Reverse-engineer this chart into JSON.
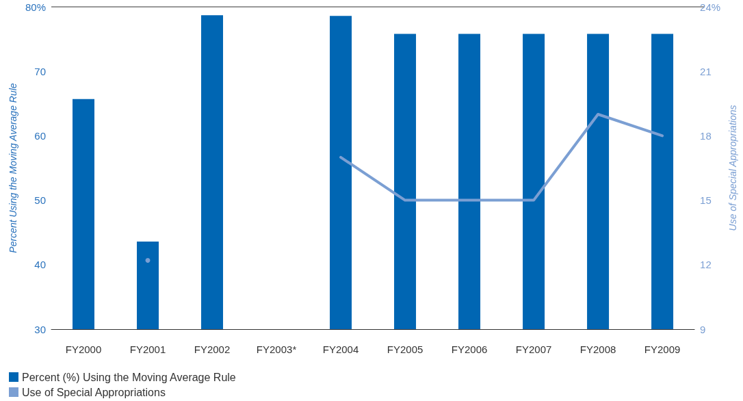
{
  "chart_data": {
    "type": "bar",
    "categories": [
      "FY2000",
      "FY2001",
      "FY2002",
      "FY2003*",
      "FY2004",
      "FY2005",
      "FY2006",
      "FY2007",
      "FY2008",
      "FY2009"
    ],
    "ylabel": "Percent Using the Moving Average Rule",
    "y2label": "Use of Special Appropriations",
    "ylim": [
      30,
      80
    ],
    "yticks": [
      30,
      40,
      50,
      60,
      70,
      {
        "value": 80,
        "label": "80%"
      }
    ],
    "y2lim": [
      9,
      24
    ],
    "y2ticks": [
      9,
      12,
      15,
      18,
      21,
      {
        "value": 24,
        "label": "24%"
      }
    ],
    "grid": false,
    "legend": "bottom left",
    "marker": "none",
    "series": [
      {
        "name": "Percent (%) Using the Moving Average Rule",
        "color": "#0066b3",
        "values": [
          65.7,
          43.6,
          78.7,
          null,
          78.6,
          75.8,
          75.8,
          75.8,
          75.8,
          75.8
        ]
      },
      {
        "name": "Use of Special Appropriations",
        "type": "line",
        "axis": "y2",
        "color": "#7b9fd3",
        "values": [
          null,
          12.2,
          null,
          null,
          17,
          15,
          15,
          15,
          19,
          18
        ]
      }
    ]
  }
}
